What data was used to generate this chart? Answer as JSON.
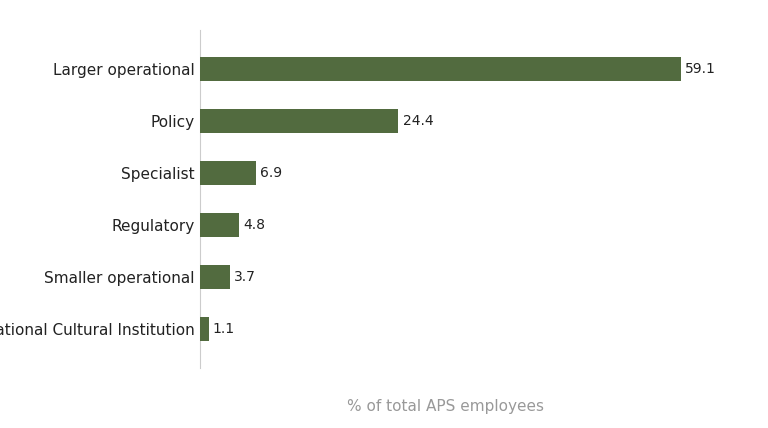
{
  "categories": [
    "Larger operational",
    "Policy",
    "Specialist",
    "Regulatory",
    "Smaller operational",
    "National Cultural Institution"
  ],
  "values": [
    59.1,
    24.4,
    6.9,
    4.8,
    3.7,
    1.1
  ],
  "bar_color": "#526b3f",
  "xlabel": "% of total APS employees",
  "xlabel_color": "#999999",
  "label_color": "#222222",
  "background_color": "#ffffff",
  "bar_height": 0.45,
  "xlabel_fontsize": 11,
  "label_fontsize": 11,
  "value_fontsize": 10,
  "xlim": [
    0,
    66
  ]
}
